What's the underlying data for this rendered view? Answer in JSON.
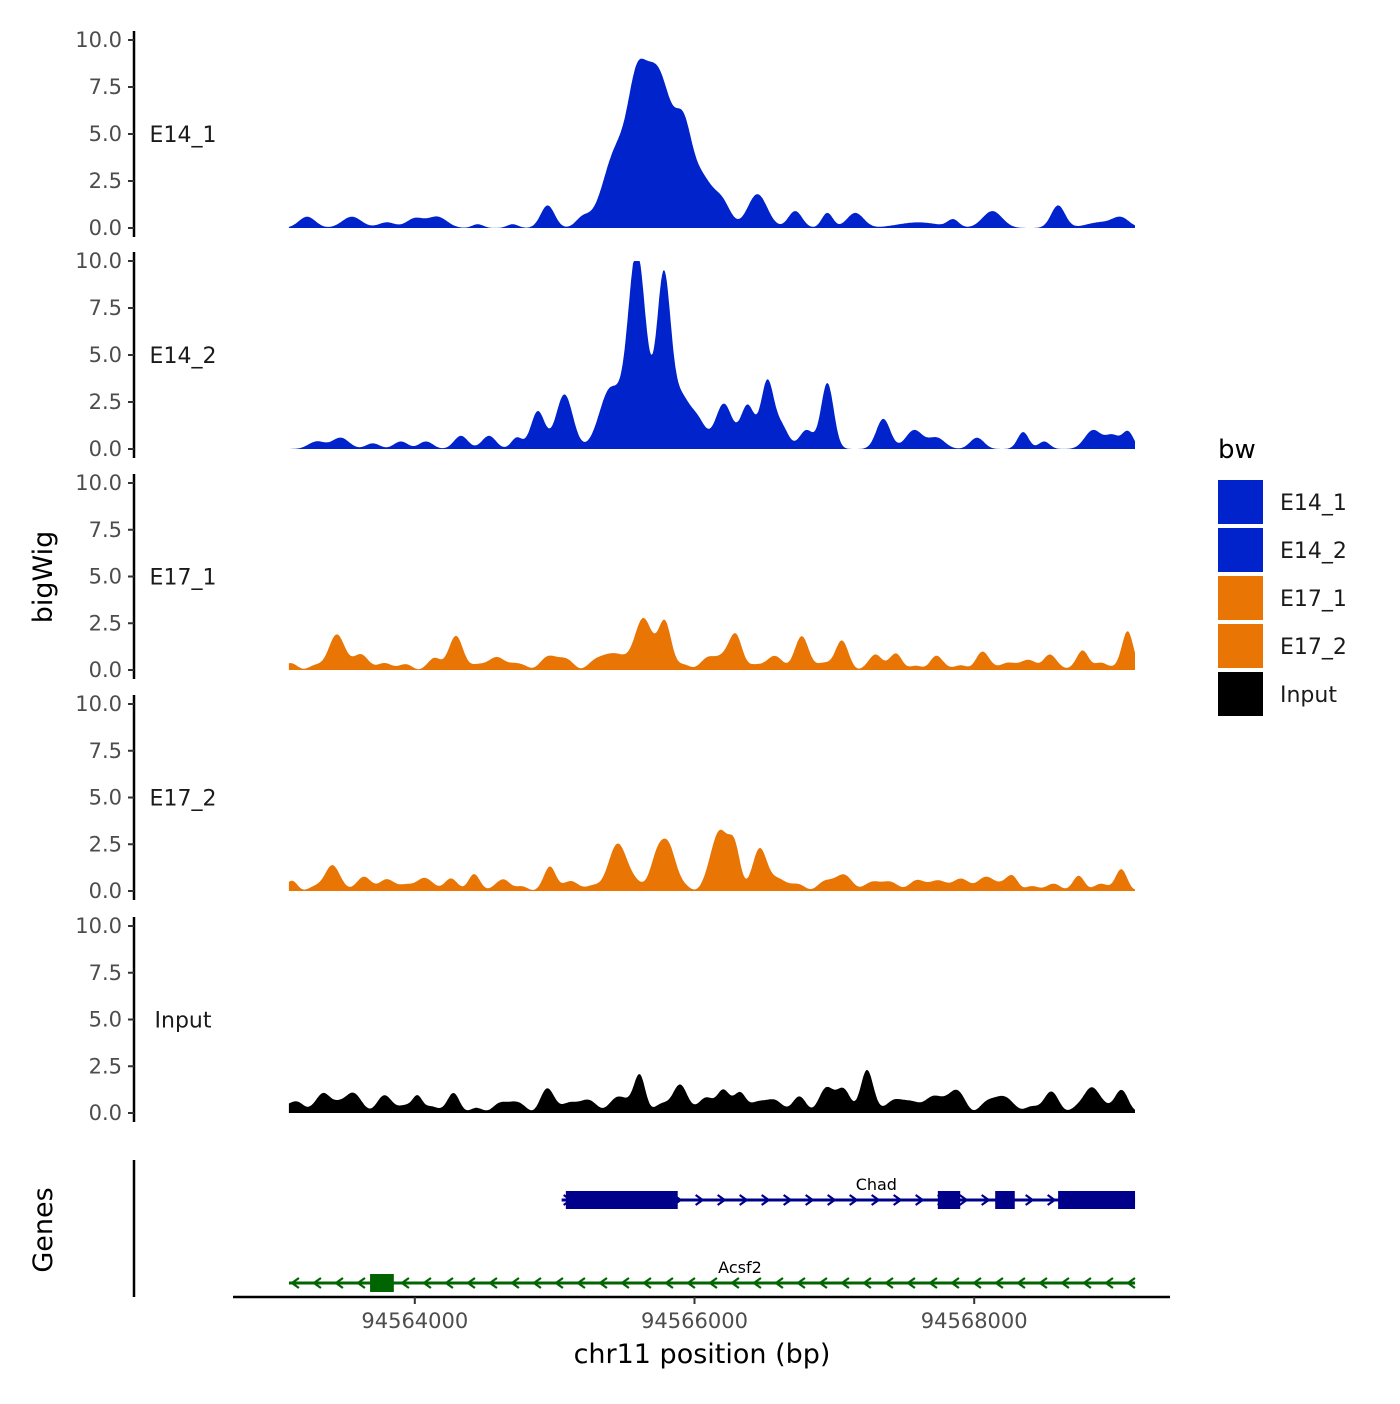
{
  "chart_data": {
    "type": "area",
    "chromosome": "chr11",
    "xlabel": "chr11 position (bp)",
    "ylabel": "bigWig",
    "genes_label": "Genes",
    "xlim": [
      94562700,
      94569400
    ],
    "ylim": [
      0,
      10
    ],
    "y_ticks": [
      "0.0",
      "2.5",
      "5.0",
      "7.5",
      "10.0"
    ],
    "x_ticks": [
      {
        "value": 94564000,
        "label": "94564000"
      },
      {
        "value": 94566000,
        "label": "94566000"
      },
      {
        "value": 94568000,
        "label": "94568000"
      }
    ],
    "data_start": 94563100,
    "data_end": 94569150,
    "legend": {
      "title": "bw",
      "entries": [
        {
          "label": "E14_1",
          "color": "#0023CC"
        },
        {
          "label": "E14_2",
          "color": "#0023CC"
        },
        {
          "label": "E17_1",
          "color": "#E87504"
        },
        {
          "label": "E17_2",
          "color": "#E87504"
        },
        {
          "label": "Input",
          "color": "#000000"
        }
      ]
    },
    "series": [
      {
        "name": "E14_1",
        "color": "#0023CC",
        "background": 0.0,
        "peaks": [
          [
            94563230,
            0.6,
            60
          ],
          [
            94563550,
            0.6,
            70
          ],
          [
            94563800,
            0.3,
            60
          ],
          [
            94564000,
            0.5,
            60
          ],
          [
            94564160,
            0.6,
            70
          ],
          [
            94564450,
            0.2,
            40
          ],
          [
            94564700,
            0.2,
            40
          ],
          [
            94564950,
            1.2,
            50
          ],
          [
            94565200,
            0.5,
            50
          ],
          [
            94565450,
            4.2,
            100
          ],
          [
            94565580,
            4.2,
            60
          ],
          [
            94565690,
            6.6,
            80
          ],
          [
            94565800,
            4.2,
            70
          ],
          [
            94565920,
            4.4,
            60
          ],
          [
            94566050,
            2.6,
            80
          ],
          [
            94566200,
            1.2,
            60
          ],
          [
            94566450,
            1.8,
            70
          ],
          [
            94566720,
            0.9,
            50
          ],
          [
            94566950,
            0.8,
            40
          ],
          [
            94567150,
            0.8,
            60
          ],
          [
            94567600,
            0.3,
            150
          ],
          [
            94567850,
            0.4,
            40
          ],
          [
            94568130,
            0.9,
            70
          ],
          [
            94568600,
            1.2,
            50
          ],
          [
            94568900,
            0.3,
            100
          ],
          [
            94569050,
            0.5,
            60
          ]
        ]
      },
      {
        "name": "E14_2",
        "color": "#0023CC",
        "background": 0.0,
        "peaks": [
          [
            94563300,
            0.4,
            60
          ],
          [
            94563470,
            0.6,
            60
          ],
          [
            94563700,
            0.3,
            50
          ],
          [
            94563900,
            0.4,
            50
          ],
          [
            94564080,
            0.4,
            50
          ],
          [
            94564330,
            0.7,
            50
          ],
          [
            94564530,
            0.7,
            50
          ],
          [
            94564730,
            0.6,
            40
          ],
          [
            94564880,
            2.0,
            50
          ],
          [
            94565070,
            2.9,
            60
          ],
          [
            94565400,
            3.2,
            80
          ],
          [
            94565580,
            9.0,
            60
          ],
          [
            94565640,
            2.2,
            60
          ],
          [
            94565780,
            9.0,
            50
          ],
          [
            94565900,
            2.5,
            60
          ],
          [
            94566020,
            1.5,
            60
          ],
          [
            94566210,
            2.4,
            60
          ],
          [
            94566380,
            2.3,
            50
          ],
          [
            94566520,
            3.5,
            45
          ],
          [
            94566620,
            1.2,
            50
          ],
          [
            94566800,
            1.0,
            50
          ],
          [
            94566950,
            3.5,
            45
          ],
          [
            94567350,
            1.6,
            50
          ],
          [
            94567570,
            1.0,
            60
          ],
          [
            94567730,
            0.6,
            60
          ],
          [
            94568020,
            0.6,
            50
          ],
          [
            94568350,
            0.9,
            40
          ],
          [
            94568500,
            0.4,
            40
          ],
          [
            94568850,
            1.0,
            60
          ],
          [
            94568990,
            0.7,
            50
          ],
          [
            94569100,
            0.9,
            40
          ]
        ]
      },
      {
        "name": "E17_1",
        "color": "#E87504",
        "background": 0.4,
        "peaks": [
          [
            94563440,
            1.5,
            60
          ],
          [
            94563620,
            0.6,
            60
          ],
          [
            94564150,
            0.4,
            40
          ],
          [
            94564300,
            1.5,
            50
          ],
          [
            94564550,
            0.4,
            60
          ],
          [
            94564700,
            0.2,
            40
          ],
          [
            94565000,
            0.5,
            80
          ],
          [
            94565350,
            0.6,
            60
          ],
          [
            94565500,
            0.5,
            60
          ],
          [
            94565640,
            2.6,
            60
          ],
          [
            94565790,
            2.2,
            45
          ],
          [
            94566080,
            0.3,
            60
          ],
          [
            94566200,
            0.5,
            60
          ],
          [
            94566300,
            1.6,
            45
          ],
          [
            94566550,
            0.4,
            60
          ],
          [
            94566770,
            1.6,
            50
          ],
          [
            94567050,
            1.3,
            45
          ],
          [
            94567300,
            0.6,
            40
          ],
          [
            94567450,
            0.6,
            40
          ],
          [
            94567720,
            0.4,
            40
          ],
          [
            94568050,
            0.7,
            45
          ],
          [
            94568350,
            0.4,
            60
          ],
          [
            94568530,
            0.5,
            40
          ],
          [
            94568780,
            0.9,
            40
          ],
          [
            94569100,
            1.9,
            40
          ]
        ]
      },
      {
        "name": "E17_2",
        "color": "#E87504",
        "background": 0.4,
        "peaks": [
          [
            94563130,
            0.2,
            30
          ],
          [
            94563400,
            1.1,
            50
          ],
          [
            94563650,
            0.6,
            50
          ],
          [
            94563820,
            0.3,
            50
          ],
          [
            94564050,
            0.6,
            50
          ],
          [
            94564250,
            0.3,
            40
          ],
          [
            94564420,
            0.7,
            40
          ],
          [
            94564650,
            0.3,
            40
          ],
          [
            94564970,
            1.0,
            40
          ],
          [
            94565150,
            0.3,
            50
          ],
          [
            94565460,
            2.2,
            70
          ],
          [
            94565730,
            1.6,
            50
          ],
          [
            94565820,
            2.0,
            50
          ],
          [
            94566180,
            3.0,
            60
          ],
          [
            94566290,
            1.9,
            40
          ],
          [
            94566470,
            2.1,
            50
          ],
          [
            94566650,
            0.3,
            80
          ],
          [
            94567050,
            0.6,
            80
          ],
          [
            94567320,
            0.3,
            60
          ],
          [
            94567620,
            0.4,
            80
          ],
          [
            94567900,
            0.4,
            80
          ],
          [
            94568100,
            0.4,
            80
          ],
          [
            94568280,
            0.6,
            40
          ],
          [
            94568750,
            0.6,
            40
          ],
          [
            94569050,
            0.9,
            40
          ]
        ]
      },
      {
        "name": "Input",
        "color": "#000000",
        "background": 0.5,
        "peaks": [
          [
            94563180,
            0.4,
            40
          ],
          [
            94563350,
            0.9,
            45
          ],
          [
            94563550,
            0.9,
            50
          ],
          [
            94563780,
            0.5,
            60
          ],
          [
            94564020,
            0.9,
            35
          ],
          [
            94564280,
            0.6,
            40
          ],
          [
            94564700,
            0.4,
            50
          ],
          [
            94564950,
            0.9,
            50
          ],
          [
            94565200,
            0.6,
            60
          ],
          [
            94565500,
            0.6,
            60
          ],
          [
            94565610,
            1.7,
            40
          ],
          [
            94565890,
            1.2,
            50
          ],
          [
            94566060,
            0.5,
            60
          ],
          [
            94566200,
            0.9,
            40
          ],
          [
            94566330,
            1.0,
            40
          ],
          [
            94566500,
            0.5,
            60
          ],
          [
            94566750,
            0.6,
            50
          ],
          [
            94566950,
            0.9,
            50
          ],
          [
            94567060,
            0.9,
            50
          ],
          [
            94567230,
            2.0,
            45
          ],
          [
            94567500,
            0.6,
            60
          ],
          [
            94567680,
            0.6,
            50
          ],
          [
            94567860,
            1.0,
            60
          ],
          [
            94568170,
            0.6,
            60
          ],
          [
            94568300,
            0.2,
            50
          ],
          [
            94568540,
            0.7,
            50
          ],
          [
            94568830,
            1.2,
            50
          ],
          [
            94569050,
            0.9,
            50
          ]
        ]
      }
    ],
    "genes": [
      {
        "name": "Chad",
        "strand": "+",
        "color": "#00008B",
        "start": 94565050,
        "end": 94569150,
        "exons": [
          [
            94565080,
            94565880
          ],
          [
            94567740,
            94567900
          ],
          [
            94568150,
            94568290
          ],
          [
            94568600,
            94569150
          ]
        ]
      },
      {
        "name": "Acsf2",
        "strand": "-",
        "color": "#006400",
        "start": 94563100,
        "end": 94569150,
        "exons": [
          [
            94563680,
            94563850
          ]
        ]
      }
    ]
  }
}
